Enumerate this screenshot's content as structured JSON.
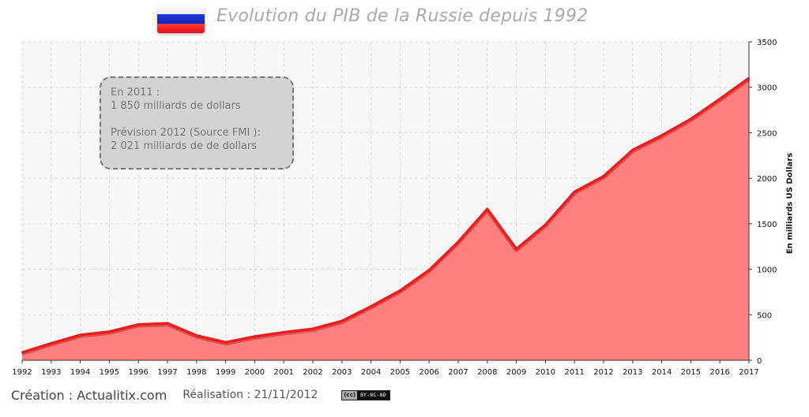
{
  "header": {
    "title": "Evolution du PIB de la Russie depuis 1992",
    "flag_icon": "russia-flag-icon"
  },
  "annotation": {
    "line1": "En 2011 :",
    "line2": "1 850 milliards  de dollars",
    "line3": "Prévision 2012 (Source FMI ):",
    "line4": "2 021 milliards  de de dollars"
  },
  "footer": {
    "creation": "Création : Actualitix.com",
    "realisation": "Réalisation : 21/11/2012",
    "license_cc": "(cc)",
    "license_text": "BY-NC-ND"
  },
  "colors": {
    "area_fill": "#ff7f7f",
    "line": "#ee1c1c",
    "plot_background": "#f7f7f7",
    "grid": "#dddddd",
    "annotation_background": "#d3d3d3"
  },
  "chart_data": {
    "type": "area",
    "title": "Evolution du PIB de la Russie depuis 1992",
    "ylabel": "En milliards US Dollars",
    "xlabel": "",
    "y_axis_side": "right",
    "ylim": [
      0,
      3500
    ],
    "yticks": [
      0,
      500,
      1000,
      1500,
      2000,
      2500,
      3000,
      3500
    ],
    "grid": true,
    "x": [
      "1992",
      "1993",
      "1994",
      "1995",
      "1996",
      "1997",
      "1998",
      "1999",
      "2000",
      "2001",
      "2002",
      "2003",
      "2004",
      "2005",
      "2006",
      "2007",
      "2008",
      "2009",
      "2010",
      "2011",
      "2012",
      "2013",
      "2014",
      "2015",
      "2016",
      "2017"
    ],
    "series": [
      {
        "values": [
          85,
          185,
          277,
          313,
          392,
          405,
          271,
          196,
          260,
          307,
          345,
          430,
          591,
          764,
          990,
          1300,
          1661,
          1222,
          1488,
          1850,
          2021,
          2310,
          2470,
          2650,
          2870,
          3100
        ]
      }
    ]
  }
}
